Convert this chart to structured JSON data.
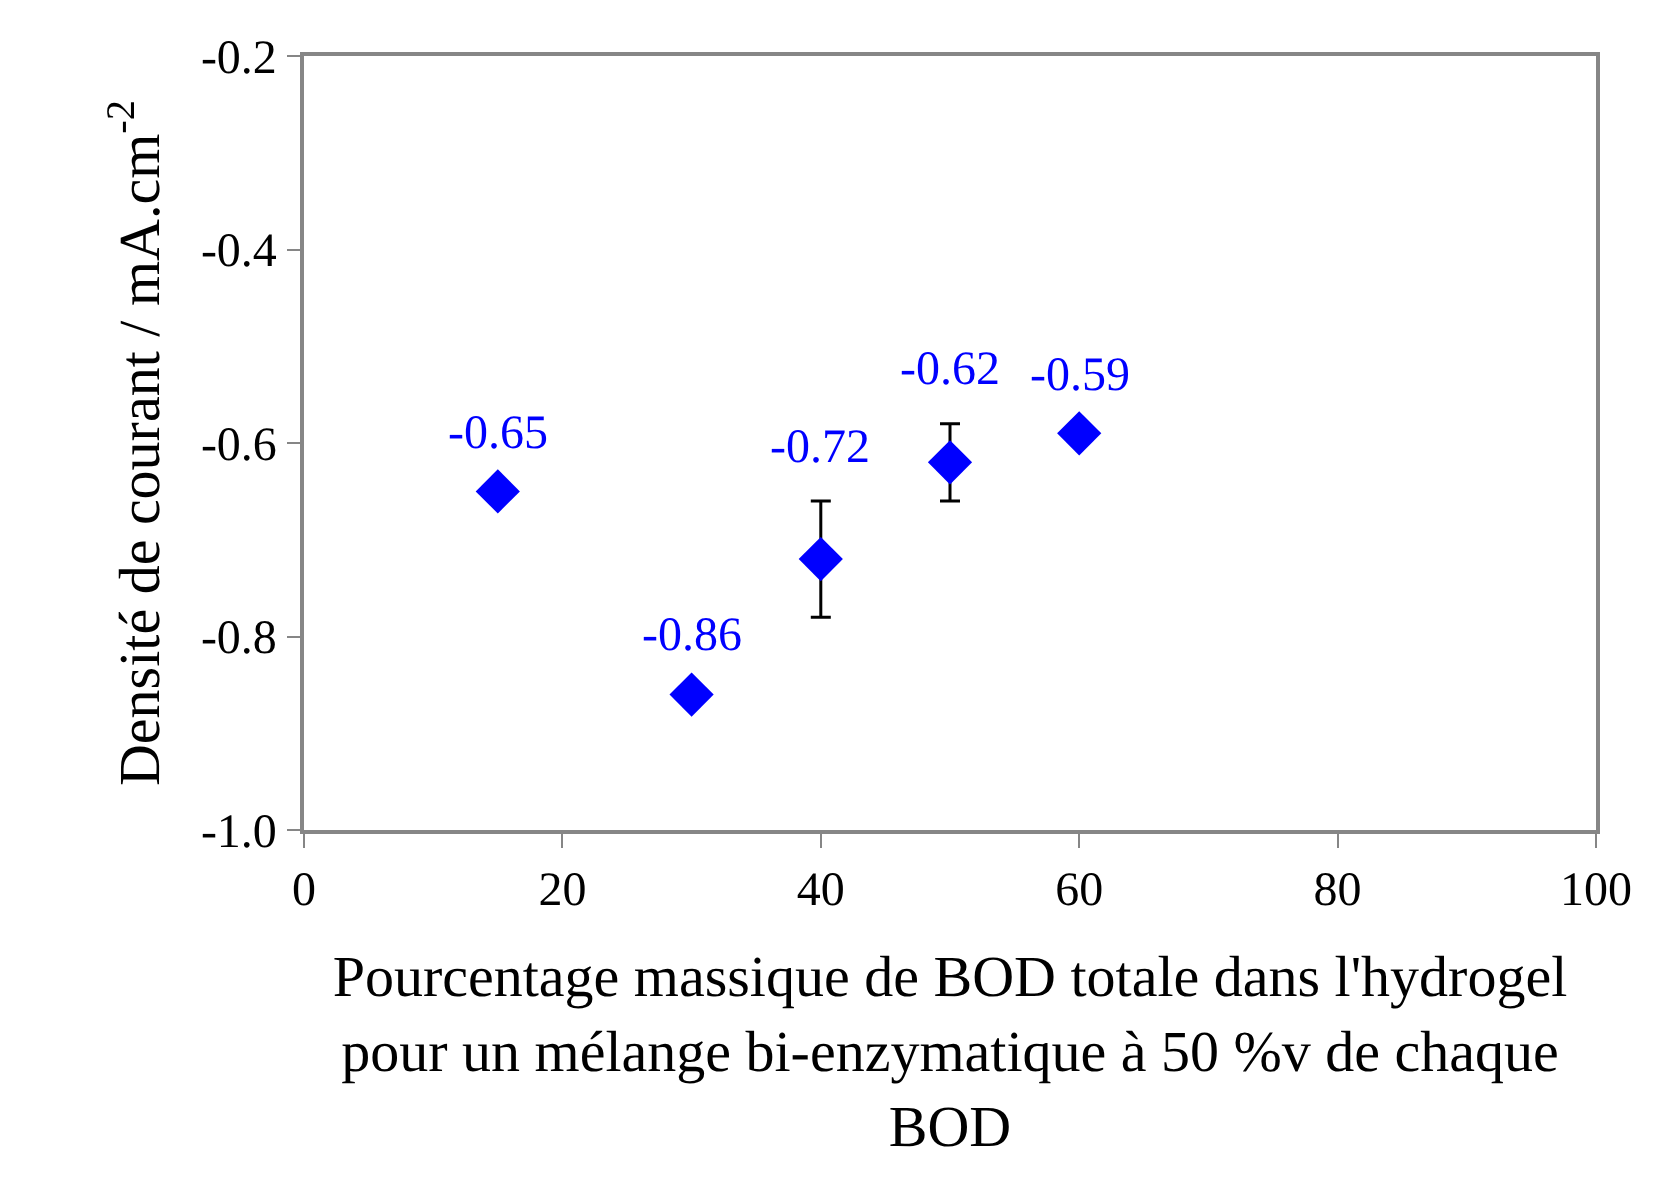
{
  "chart_data": {
    "type": "scatter",
    "xlabel": "Pourcentage massique de BOD totale dans l'hydrogel\npour un mélange bi-enzymatique à 50 %v de chaque\nBOD",
    "ylabel": "Densité de courant / mA.cm$^{-2}$",
    "x": [
      15,
      30,
      40,
      50,
      60
    ],
    "series": [
      {
        "color": "#0000ff",
        "values": [
          -0.65,
          -0.86,
          -0.72,
          -0.62,
          -0.59
        ],
        "errors": [
          null,
          null,
          0.06,
          0.04,
          null
        ]
      }
    ],
    "marker": "diamond",
    "data_labels": true,
    "xlim": [
      0,
      100
    ],
    "xticks": [
      0,
      20,
      40,
      60,
      80,
      100
    ],
    "ylim": [
      -1.0,
      -0.2
    ],
    "yticks": [
      {
        "value": -1.0,
        "label": "-1.0"
      },
      {
        "value": -0.8,
        "label": "-0.8"
      },
      {
        "value": -0.6,
        "label": "-0.6"
      },
      {
        "value": -0.4,
        "label": "-0.4"
      },
      {
        "value": -0.2,
        "label": "-0.2"
      }
    ]
  }
}
